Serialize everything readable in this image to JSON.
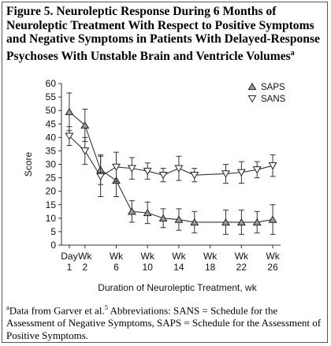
{
  "figure": {
    "title_lines": [
      "Figure 5. Neuroleptic Response During 6 Months of",
      "Neuroleptic Treatment With Respect to Positive Symptoms",
      "and Negative Symptoms in Patients With Delayed-Response",
      "Psychoses With Unstable Brain and Ventricle Volumes"
    ],
    "title_footnote_mark": "a",
    "footnote": {
      "mark": "a",
      "text_before_ref": "Data from Garver et al.",
      "ref": "5",
      "text_after_ref": " Abbreviations: SANS = Schedule for the Assessment of Negative Symptoms, SAPS = Schedule for the Assessment of Positive Symptoms."
    }
  },
  "chart_data": {
    "type": "line",
    "title": "",
    "xlabel": "Duration of Neuroleptic Treatment, wk",
    "ylabel": "Score",
    "ylim": [
      0,
      60
    ],
    "yticks": [
      0,
      5,
      10,
      15,
      20,
      25,
      30,
      35,
      40,
      45,
      50,
      55,
      60
    ],
    "x_ticks": [
      {
        "top": "Day",
        "bottom": "1",
        "x": 0
      },
      {
        "top": "Wk",
        "bottom": "2",
        "x": 1
      },
      {
        "top": "Wk",
        "bottom": "6",
        "x": 3
      },
      {
        "top": "Wk",
        "bottom": "10",
        "x": 5
      },
      {
        "top": "Wk",
        "bottom": "14",
        "x": 7
      },
      {
        "top": "Wk",
        "bottom": "18",
        "x": 9
      },
      {
        "top": "Wk",
        "bottom": "22",
        "x": 11
      },
      {
        "top": "Wk",
        "bottom": "26",
        "x": 13
      }
    ],
    "xlim": [
      -0.5,
      13.5
    ],
    "series": [
      {
        "name": "SAPS",
        "marker": "triangle-up",
        "x": [
          0,
          1,
          2,
          3,
          4,
          5,
          6,
          7,
          8,
          10,
          11,
          12,
          13
        ],
        "y": [
          49.5,
          44.5,
          28,
          24,
          12.5,
          12,
          10,
          9.5,
          8.5,
          8.5,
          8.5,
          8.5,
          9.5
        ],
        "err": [
          7,
          6,
          5.5,
          6,
          4,
          4,
          3.5,
          4,
          4,
          4.5,
          4.5,
          4,
          5.5
        ]
      },
      {
        "name": "SANS",
        "marker": "triangle-down",
        "x": [
          0,
          1,
          2,
          3,
          4,
          5,
          6,
          7,
          8,
          10,
          11,
          12,
          13
        ],
        "y": [
          40.5,
          35,
          25.5,
          29,
          28.5,
          27.5,
          26,
          28.5,
          26,
          26.5,
          27,
          28,
          29.5
        ],
        "err": [
          3.5,
          5,
          7.5,
          5.5,
          4,
          3,
          2.5,
          4.5,
          2.5,
          3.5,
          4,
          3,
          4
        ]
      }
    ],
    "legend_position": "top-right",
    "grid": false
  }
}
